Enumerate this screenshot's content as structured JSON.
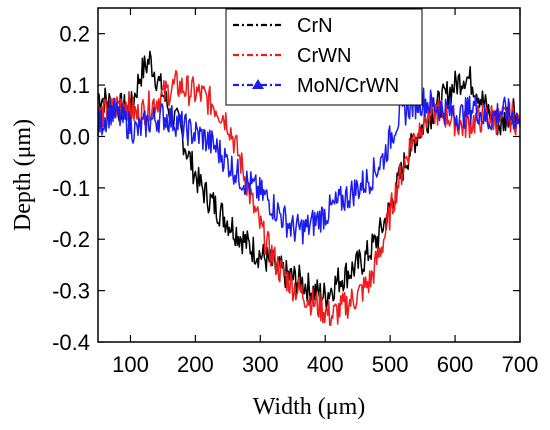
{
  "chart_data": {
    "type": "line",
    "xlabel": "Width (μm)",
    "ylabel": "Depth (μm)",
    "xlim": [
      50,
      700
    ],
    "ylim": [
      -0.4,
      0.25
    ],
    "xticks": [
      100,
      200,
      300,
      400,
      500,
      600,
      700
    ],
    "yticks": [
      0.2,
      0.1,
      0.0,
      -0.1,
      -0.2,
      -0.3,
      -0.4
    ],
    "ytick_labels": [
      "0.2",
      "0.1",
      "0.0",
      "-0.1",
      "-0.2",
      "-0.3",
      "-0.4"
    ],
    "legend_position": "top-center",
    "series": [
      {
        "name": "CrN",
        "color": "#000000",
        "x": [
          50,
          75,
          100,
          115,
          130,
          145,
          160,
          175,
          190,
          205,
          220,
          240,
          260,
          280,
          300,
          320,
          340,
          360,
          380,
          400,
          420,
          440,
          460,
          480,
          500,
          520,
          540,
          560,
          580,
          600,
          615,
          630,
          650,
          670,
          690,
          700
        ],
        "y": [
          0.08,
          0.06,
          0.05,
          0.12,
          0.15,
          0.1,
          0.05,
          0.02,
          -0.04,
          -0.09,
          -0.12,
          -0.15,
          -0.18,
          -0.21,
          -0.23,
          -0.25,
          -0.27,
          -0.28,
          -0.3,
          -0.31,
          -0.28,
          -0.26,
          -0.24,
          -0.2,
          -0.14,
          -0.06,
          0.0,
          0.04,
          0.07,
          0.1,
          0.12,
          0.1,
          0.05,
          0.02,
          0.06,
          0.03
        ]
      },
      {
        "name": "CrWN",
        "color": "#ee1c1c",
        "x": [
          50,
          70,
          90,
          110,
          130,
          150,
          170,
          190,
          210,
          230,
          250,
          270,
          290,
          310,
          330,
          350,
          370,
          390,
          410,
          430,
          450,
          470,
          490,
          510,
          530,
          550,
          570,
          590,
          610,
          630,
          650,
          670,
          690,
          700
        ],
        "y": [
          0.04,
          0.05,
          0.07,
          0.04,
          0.06,
          0.08,
          0.1,
          0.09,
          0.08,
          0.06,
          0.03,
          -0.05,
          -0.14,
          -0.21,
          -0.26,
          -0.29,
          -0.31,
          -0.33,
          -0.35,
          -0.33,
          -0.31,
          -0.28,
          -0.2,
          -0.1,
          -0.02,
          0.03,
          0.05,
          0.04,
          0.02,
          0.03,
          0.04,
          0.03,
          0.04,
          0.02
        ]
      },
      {
        "name": "MoN/CrWN",
        "color": "#1c1cee",
        "x": [
          50,
          70,
          90,
          110,
          130,
          150,
          170,
          190,
          210,
          230,
          250,
          270,
          290,
          310,
          330,
          350,
          370,
          390,
          410,
          430,
          450,
          470,
          490,
          510,
          530,
          550,
          570,
          590,
          610,
          630,
          650,
          670,
          690,
          700
        ],
        "y": [
          0.02,
          0.05,
          0.03,
          0.01,
          0.03,
          0.04,
          0.03,
          0.01,
          0.0,
          -0.02,
          -0.05,
          -0.08,
          -0.1,
          -0.12,
          -0.15,
          -0.18,
          -0.18,
          -0.16,
          -0.14,
          -0.12,
          -0.1,
          -0.08,
          -0.04,
          0.03,
          0.06,
          0.07,
          0.06,
          0.05,
          0.04,
          0.06,
          0.03,
          0.05,
          0.04,
          0.03
        ]
      }
    ]
  }
}
